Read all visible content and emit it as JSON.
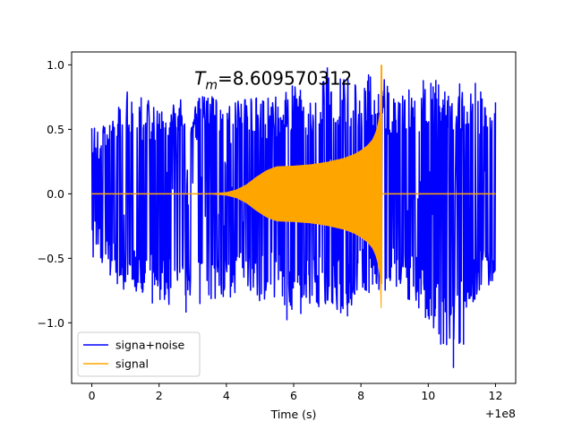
{
  "chart_data": {
    "type": "line",
    "title": "",
    "xlabel": "Time (s)",
    "ylabel": "",
    "x_offset_label": "+1e8",
    "xlim": [
      -0.6,
      12.6
    ],
    "ylim": [
      -1.47,
      1.1
    ],
    "xticks": [
      0,
      2,
      4,
      6,
      8,
      10,
      12
    ],
    "xtick_labels": [
      "0",
      "2",
      "4",
      "6",
      "8",
      "10",
      "12"
    ],
    "yticks": [
      -1.0,
      -0.5,
      0.0,
      0.5,
      1.0
    ],
    "ytick_labels": [
      "−1.0",
      "−0.5",
      "0.0",
      "0.5",
      "1.0"
    ],
    "grid": false,
    "legend_position": "lower-left",
    "annotation": {
      "prefix": "T",
      "subscript": "m",
      "value_text": "=8.609570312",
      "x": 3.05,
      "y": 0.845
    },
    "colors": {
      "noise": "#0000ff",
      "signal": "#ffa500"
    },
    "series": [
      {
        "name": "signa+noise",
        "color": "#0000ff",
        "x_range": [
          0,
          12
        ],
        "envelope_x": [
          0,
          0.5,
          1,
          1.5,
          2,
          2.5,
          3,
          3.5,
          4,
          4.5,
          5,
          5.5,
          6,
          6.5,
          7,
          7.5,
          8,
          8.5,
          9,
          9.5,
          10,
          10.5,
          11,
          11.5,
          12
        ],
        "envelope_upper": [
          0.55,
          0.62,
          0.82,
          0.75,
          0.72,
          0.75,
          0.72,
          0.8,
          0.68,
          0.78,
          0.78,
          0.75,
          0.85,
          0.78,
          0.95,
          0.95,
          0.88,
          0.98,
          0.75,
          0.85,
          0.9,
          0.88,
          0.85,
          0.8,
          0.72
        ],
        "envelope_lower": [
          -0.6,
          -0.62,
          -0.78,
          -0.8,
          -0.82,
          -0.9,
          -0.88,
          -0.85,
          -0.82,
          -0.8,
          -0.85,
          -0.8,
          -0.97,
          -0.9,
          -0.85,
          -0.95,
          -0.75,
          -0.8,
          -0.75,
          -0.85,
          -0.98,
          -1.25,
          -1.18,
          -0.8,
          -0.65
        ],
        "spikes": [
          {
            "x": 1.8,
            "y": -0.85
          },
          {
            "x": 2.8,
            "y": -0.92
          },
          {
            "x": 5.8,
            "y": -0.98
          },
          {
            "x": 7.0,
            "y": 0.98
          },
          {
            "x": 7.6,
            "y": -0.95
          },
          {
            "x": 10.2,
            "y": -0.95
          },
          {
            "x": 10.75,
            "y": -1.35
          },
          {
            "x": 11.05,
            "y": -1.17
          },
          {
            "x": 11.4,
            "y": 0.86
          }
        ]
      },
      {
        "name": "signal",
        "color": "#ffa500",
        "x": [
          0,
          3.5,
          4.0,
          4.3,
          4.6,
          4.9,
          5.2,
          5.5,
          6.0,
          6.5,
          7.0,
          7.5,
          7.8,
          8.0,
          8.2,
          8.35,
          8.45,
          8.52,
          8.58,
          8.6096,
          8.65,
          8.75,
          12
        ],
        "envelope": [
          0,
          0,
          0.01,
          0.03,
          0.07,
          0.13,
          0.18,
          0.21,
          0.215,
          0.225,
          0.245,
          0.275,
          0.305,
          0.335,
          0.375,
          0.42,
          0.48,
          0.55,
          0.65,
          1.0,
          0.25,
          0.0,
          0.0
        ],
        "peak": {
          "x": 8.6096,
          "y": 1.0,
          "min": -0.7
        }
      }
    ]
  }
}
